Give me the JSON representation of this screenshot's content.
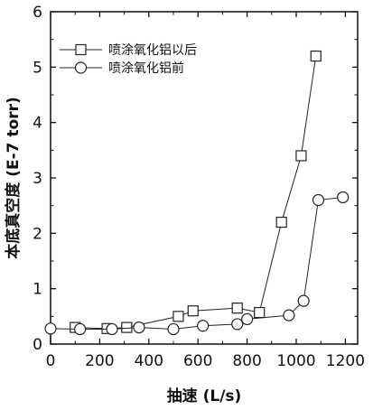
{
  "chart_data": {
    "type": "line",
    "xlabel": "抽速 (L/s)",
    "ylabel": "本底真空度 (E-7 torr)",
    "xlim": [
      0,
      1250
    ],
    "ylim": [
      0,
      6
    ],
    "xticks": [
      0,
      200,
      400,
      600,
      800,
      1000,
      1200
    ],
    "yticks": [
      0,
      1,
      2,
      3,
      4,
      5,
      6
    ],
    "grid": false,
    "legend_position": "top-left",
    "series": [
      {
        "name": "喷涂氧化铝以后",
        "marker": "square",
        "x": [
          100,
          230,
          310,
          520,
          580,
          760,
          850,
          940,
          1020,
          1080
        ],
        "y": [
          0.3,
          0.28,
          0.3,
          0.5,
          0.6,
          0.65,
          0.57,
          2.2,
          3.4,
          5.2
        ]
      },
      {
        "name": "喷涂氧化铝前",
        "marker": "circle",
        "x": [
          0,
          120,
          250,
          360,
          500,
          620,
          760,
          800,
          970,
          1030,
          1090,
          1190
        ],
        "y": [
          0.28,
          0.27,
          0.27,
          0.3,
          0.27,
          0.33,
          0.36,
          0.45,
          0.52,
          0.78,
          2.6,
          2.65
        ]
      }
    ]
  }
}
